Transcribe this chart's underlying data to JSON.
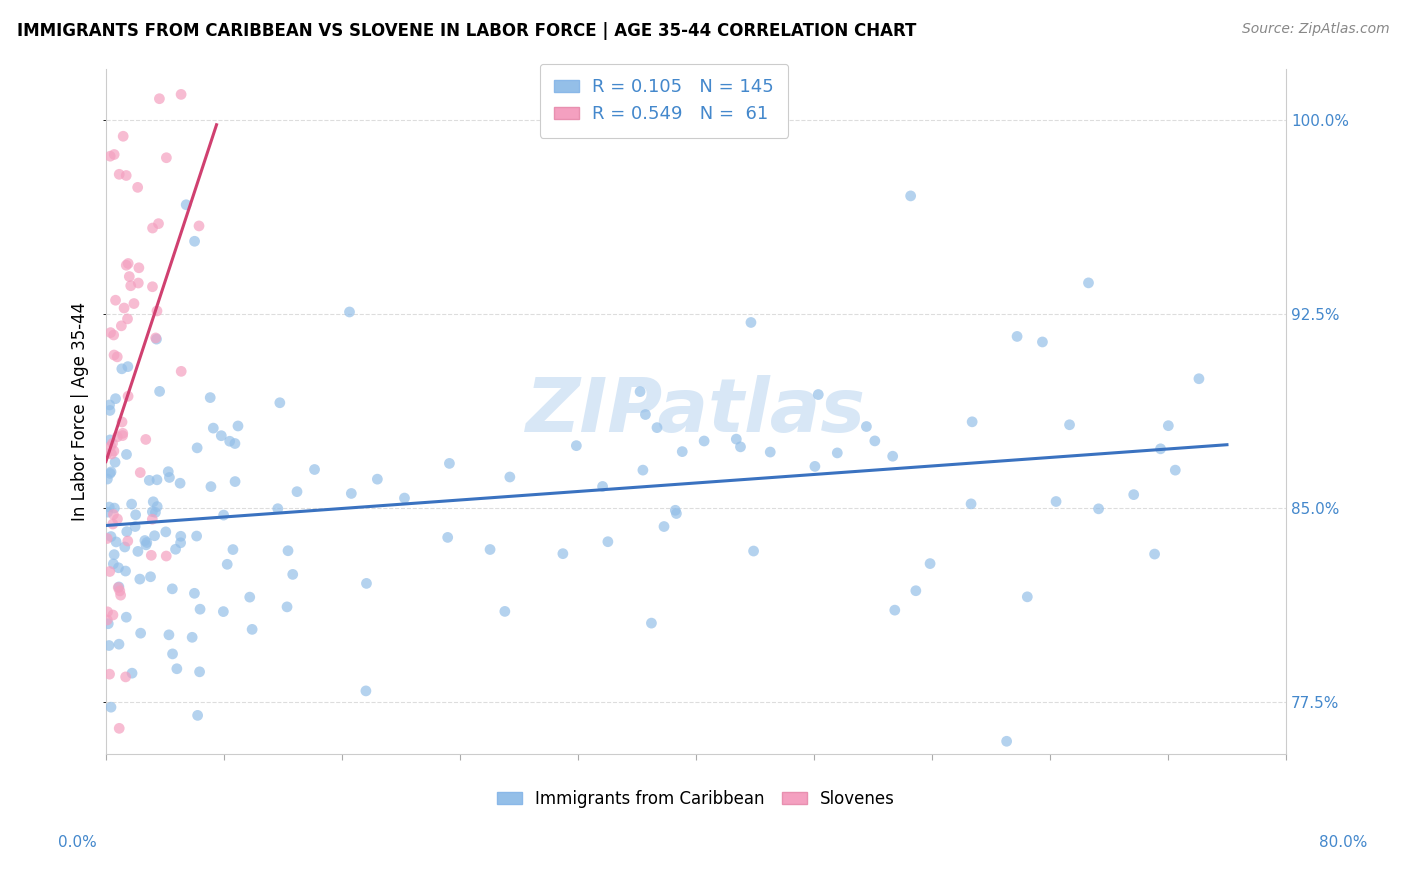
{
  "title": "IMMIGRANTS FROM CARIBBEAN VS SLOVENE IN LABOR FORCE | AGE 35-44 CORRELATION CHART",
  "source": "Source: ZipAtlas.com",
  "xmin": 0.0,
  "xmax": 80.0,
  "ymin": 75.5,
  "ymax": 102.0,
  "R_blue": 0.105,
  "N_blue": 145,
  "R_pink": 0.549,
  "N_pink": 61,
  "blue_color": "#94bfe8",
  "pink_color": "#f4a0c0",
  "trend_blue": "#3a72c0",
  "trend_pink": "#d04070",
  "legend_label_blue": "Immigrants from Caribbean",
  "legend_label_pink": "Slovenes",
  "watermark": "ZIPatlas",
  "ylabel": "In Labor Force | Age 35-44",
  "yticks": [
    77.5,
    85.0,
    92.5,
    100.0
  ],
  "grid_color": "#dddddd",
  "title_fontsize": 12,
  "source_fontsize": 10,
  "tick_color": "#4488cc",
  "marker_size": 60,
  "marker_alpha": 0.7,
  "seed_blue": 17,
  "seed_pink": 53
}
